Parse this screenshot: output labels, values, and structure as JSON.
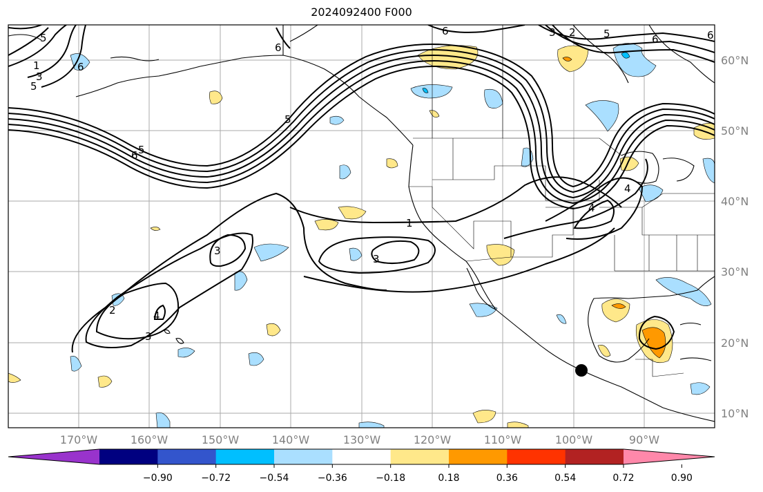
{
  "title": "2024092400 F000",
  "lon_labels": [
    "170°W",
    "160°W",
    "150°W",
    "140°W",
    "130°W",
    "120°W",
    "110°W",
    "100°W",
    "90°W"
  ],
  "lat_labels": [
    "60°N",
    "50°N",
    "40°N",
    "30°N",
    "20°N",
    "10°N"
  ],
  "contour_labels": [
    "6",
    "6",
    "5",
    "6",
    "5",
    "6",
    "5",
    "3",
    "6",
    "1",
    "3",
    "5",
    "4",
    "4",
    "1",
    "3",
    "3",
    "2",
    "4",
    "3",
    "6",
    "2",
    "5"
  ],
  "colorbar": {
    "colors": [
      "#9933cc",
      "#000080",
      "#3355cc",
      "#00bfff",
      "#aadfff",
      "#ffffff",
      "#ffe88a",
      "#ff9900",
      "#ff3300",
      "#b22222",
      "#ff88aa"
    ],
    "tick_labels": [
      "−0.90",
      "−0.72",
      "−0.54",
      "−0.36",
      "−0.18",
      "0.18",
      "0.36",
      "0.54",
      "0.72",
      "0.90"
    ]
  },
  "colors": {
    "ocean": "#ffffff",
    "coast": "#000000",
    "grid": "#aaaaaa",
    "contour": "#000000"
  },
  "marker_icon": "black-dot-icon"
}
